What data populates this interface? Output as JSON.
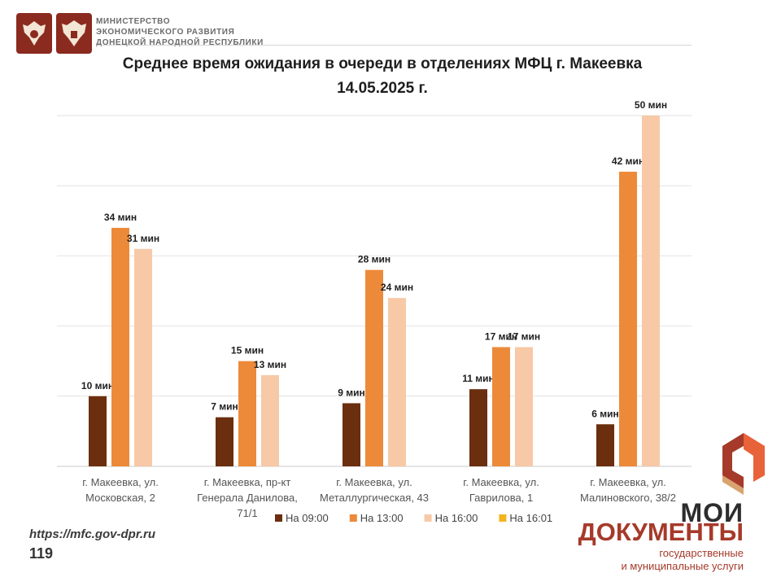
{
  "header": {
    "ministry_lines": [
      "МИНИСТЕРСТВО",
      "ЭКОНОМИЧЕСКОГО РАЗВИТИЯ",
      "ДОНЕЦКОЙ НАРОДНОЙ РЕСПУБЛИКИ"
    ]
  },
  "title_lines": [
    "Среднее время ожидания в очереди в отделениях МФЦ г. Макеевка",
    "14.05.2025 г."
  ],
  "chart_data": {
    "type": "bar",
    "title": "Среднее время ожидания в очереди в отделениях МФЦ г. Макеевка 14.05.2025 г.",
    "categories": [
      [
        "г. Макеевка, ул.",
        "Московская, 2"
      ],
      [
        "г. Макеевка, пр-кт",
        "Генерала Данилова,",
        "71/1"
      ],
      [
        "г. Макеевка, ул.",
        "Металлургическая, 43"
      ],
      [
        "г. Макеевка, ул.",
        "Гаврилова, 1"
      ],
      [
        "г. Макеевка, ул.",
        "Малиновского, 38/2"
      ]
    ],
    "series": [
      {
        "name": "На 09:00",
        "color": "#6b2e0e",
        "values": [
          10,
          7,
          9,
          11,
          6
        ]
      },
      {
        "name": "На 13:00",
        "color": "#ec8a3a",
        "values": [
          34,
          15,
          28,
          17,
          42
        ]
      },
      {
        "name": "На 16:00",
        "color": "#f7c9a6",
        "values": [
          31,
          13,
          24,
          17,
          50
        ]
      },
      {
        "name": "На 16:01",
        "color": "#f2b51e",
        "values": [
          null,
          null,
          null,
          null,
          null
        ]
      }
    ],
    "value_suffix": " мин",
    "ylim": [
      0,
      50
    ],
    "gridlines": true,
    "legend_position": "bottom"
  },
  "footer": {
    "url": "https://mfc.gov-dpr.ru",
    "phone": "119"
  },
  "brand": {
    "line1": "МОИ",
    "line2": "ДОКУМЕНТЫ",
    "tagline": [
      "государственные",
      "и муниципальные услуги"
    ],
    "colors": {
      "dark": "#2d2d2d",
      "accent": "#a63a2a",
      "orange": "#e8623a"
    }
  }
}
